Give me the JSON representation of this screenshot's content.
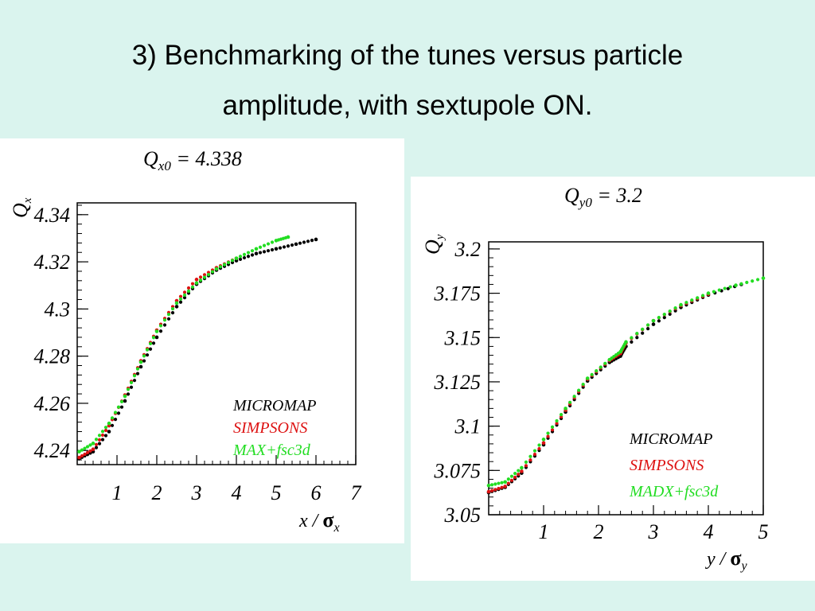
{
  "slide": {
    "title_line1": "3) Benchmarking of the tunes versus particle",
    "title_line2": "amplitude, with sextupole ON."
  },
  "chart_data": [
    {
      "type": "scatter",
      "title": {
        "prefix": "Q",
        "sub": "x0",
        "value": " = 4.338"
      },
      "ylabel": {
        "main": "Q",
        "sub": "x"
      },
      "xlabel": {
        "main": "x / ",
        "sym": "σ",
        "sub": "x"
      },
      "xlim": [
        0,
        7
      ],
      "ylim": [
        4.234,
        4.345
      ],
      "xticks": [
        1,
        2,
        3,
        4,
        5,
        6,
        7
      ],
      "xtick_labels": [
        "1",
        "2",
        "3",
        "4",
        "5",
        "6",
        "7"
      ],
      "yticks": [
        4.24,
        4.26,
        4.28,
        4.3,
        4.32,
        4.34
      ],
      "ytick_labels": [
        "4.24",
        "4.26",
        "4.28",
        "4.3",
        "4.32",
        "4.34"
      ],
      "legend_position": "bottom-right",
      "series": [
        {
          "name": "MICROMAP",
          "color": "#000000",
          "x": [
            0.05,
            0.4,
            0.8,
            1.2,
            1.6,
            2.0,
            2.5,
            3.0,
            3.5,
            4.0,
            4.5,
            5.0,
            5.5,
            6.0
          ],
          "y": [
            4.2365,
            4.2395,
            4.248,
            4.261,
            4.2755,
            4.288,
            4.301,
            4.3105,
            4.3165,
            4.3205,
            4.3235,
            4.3255,
            4.3275,
            4.3295
          ]
        },
        {
          "name": "SIMPSONS",
          "color": "#dd1111",
          "x": [
            0.05,
            0.4,
            0.8,
            1.2,
            1.6,
            2.0,
            2.5,
            3.0,
            3.5,
            4.0
          ],
          "y": [
            4.237,
            4.2405,
            4.2505,
            4.2635,
            4.278,
            4.291,
            4.3035,
            4.3125,
            4.3175,
            4.3215
          ]
        },
        {
          "name": "MAX+fsc3d",
          "color": "#22dd22",
          "x": [
            0.05,
            0.4,
            0.8,
            1.2,
            1.6,
            2.0,
            2.5,
            3.0,
            3.5,
            4.0,
            4.5,
            5.0,
            5.3
          ],
          "y": [
            4.2395,
            4.243,
            4.2515,
            4.263,
            4.2775,
            4.2905,
            4.3025,
            4.311,
            4.317,
            4.3215,
            4.3255,
            4.329,
            4.3305
          ]
        }
      ]
    },
    {
      "type": "scatter",
      "title": {
        "prefix": "Q",
        "sub": "y0",
        "value": " = 3.2"
      },
      "ylabel": {
        "main": "Q",
        "sub": "y"
      },
      "xlabel": {
        "main": "y / ",
        "sym": "σ",
        "sub": "y"
      },
      "xlim": [
        0,
        5
      ],
      "ylim": [
        3.05,
        3.204
      ],
      "xticks": [
        1,
        2,
        3,
        4,
        5
      ],
      "xtick_labels": [
        "1",
        "2",
        "3",
        "4",
        "5"
      ],
      "yticks": [
        3.05,
        3.075,
        3.1,
        3.125,
        3.15,
        3.175,
        3.2
      ],
      "ytick_labels": [
        "3.05",
        "3.075",
        "3.1",
        "3.125",
        "3.15",
        "3.175",
        "3.2"
      ],
      "legend_position": "bottom-right",
      "series": [
        {
          "name": "MICROMAP",
          "color": "#000000",
          "x": [
            0.0,
            0.3,
            0.6,
            1.0,
            1.4,
            1.8,
            2.2,
            2.4,
            2.5,
            3.0,
            3.5,
            4.0,
            4.6
          ],
          "y": [
            3.0625,
            3.0655,
            3.0735,
            3.0895,
            3.108,
            3.1255,
            3.136,
            3.1395,
            3.145,
            3.1575,
            3.167,
            3.174,
            3.18
          ]
        },
        {
          "name": "SIMPSONS",
          "color": "#dd1111",
          "x": [
            0.0,
            0.3,
            0.6,
            1.0,
            1.4,
            1.8,
            2.2,
            2.4,
            2.5,
            3.0,
            3.5,
            4.0
          ],
          "y": [
            3.063,
            3.066,
            3.0745,
            3.0905,
            3.109,
            3.1265,
            3.137,
            3.141,
            3.147,
            3.1595,
            3.168,
            3.1745
          ]
        },
        {
          "name": "MADX+fsc3d",
          "color": "#22dd22",
          "x": [
            0.0,
            0.3,
            0.6,
            1.0,
            1.4,
            1.8,
            2.2,
            2.4,
            2.5,
            3.0,
            3.5,
            4.0,
            4.5,
            5.0
          ],
          "y": [
            3.0665,
            3.0685,
            3.0765,
            3.0925,
            3.11,
            3.127,
            3.1375,
            3.142,
            3.1475,
            3.1595,
            3.1685,
            3.175,
            3.1795,
            3.1835
          ]
        }
      ]
    }
  ]
}
